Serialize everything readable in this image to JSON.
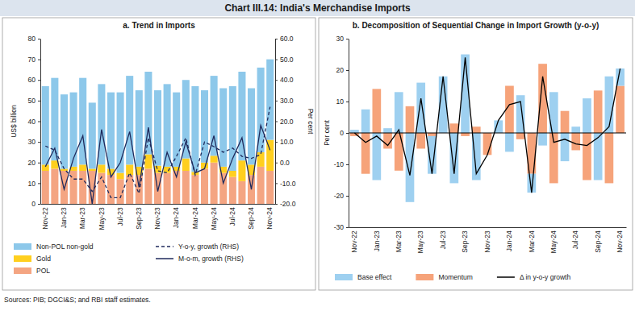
{
  "title": "Chart III.14: India's Merchandise Imports",
  "source": "Sources: PIB; DGCI&S; and RBI staff estimates.",
  "chart_data": [
    {
      "type": "bar",
      "title": "a. Trend in Imports",
      "stacked": true,
      "grid": false,
      "legend": "bottom",
      "ylabel": "US$ billion",
      "y2label": "Per cent",
      "categories": [
        "Nov-22",
        null,
        "Jan-23",
        null,
        "Mar-23",
        null,
        "May-23",
        null,
        "Jul-23",
        null,
        "Sep-23",
        null,
        "Nov-23",
        null,
        "Jan-24",
        null,
        "Mar-24",
        null,
        "May-24",
        null,
        "Jul-24",
        null,
        "Sep-24",
        null,
        "Nov-24"
      ],
      "ylim": [
        0,
        80
      ],
      "yticks": [
        0,
        10,
        20,
        30,
        40,
        50,
        60,
        70,
        80
      ],
      "y2lim": [
        -20,
        60
      ],
      "y2ticks": [
        {
          "value": -20,
          "label": "-20.0"
        },
        {
          "value": -10,
          "label": "-10.0"
        },
        {
          "value": 0,
          "label": "0.0"
        },
        {
          "value": 10,
          "label": "10.0"
        },
        {
          "value": 20,
          "label": "20.0"
        },
        {
          "value": 30,
          "label": "30.0"
        },
        {
          "value": 40,
          "label": "40.0"
        },
        {
          "value": 50,
          "label": "50.0"
        },
        {
          "value": 60,
          "label": "60.0"
        }
      ],
      "series": [
        {
          "name": "Non-POL non-gold",
          "color": "#8DC8EA",
          "values": [
            38,
            40,
            36,
            36,
            42,
            32,
            39,
            37,
            39,
            43,
            37,
            40,
            36.5,
            40,
            36,
            38,
            41.5,
            35,
            38.7,
            38,
            41,
            43,
            37,
            41,
            39
          ]
        },
        {
          "name": "Gold",
          "color": "#FFCF1F",
          "values": [
            3,
            4,
            1,
            2,
            3,
            1,
            4,
            3,
            3,
            5,
            4,
            7,
            3.5,
            3,
            2,
            6,
            1.5,
            3,
            3.3,
            3,
            3,
            10,
            5,
            7,
            15
          ]
        },
        {
          "name": "POL",
          "color": "#F4A582",
          "values": [
            16,
            17,
            16,
            16,
            16,
            16,
            15,
            14,
            12,
            14,
            14,
            17,
            15,
            15,
            16,
            16,
            14,
            17,
            20,
            15,
            13,
            11,
            14,
            18,
            16
          ]
        },
        {
          "name": "Y-o-y, growth (RHS)",
          "type": "line",
          "axis": "y2",
          "line_style": "dashed",
          "color": "#1F2A5C",
          "values": [
            8,
            6,
            -3,
            -8,
            -8,
            -14,
            -7,
            -17,
            -17,
            -5,
            -15,
            12,
            -4,
            -5,
            3,
            12,
            -6,
            10,
            7.7,
            5,
            7,
            3,
            2,
            3.9,
            27
          ]
        },
        {
          "name": "M-o-m, growth (RHS)",
          "type": "line",
          "axis": "y2",
          "line_style": "solid",
          "color": "#1F2A5C",
          "values": [
            -2,
            7,
            -13,
            2,
            13,
            -20,
            16,
            -7,
            0,
            15,
            -12,
            17,
            -14,
            5,
            -7,
            10,
            -5,
            -3,
            13,
            -10,
            2,
            12,
            -13,
            18,
            6
          ]
        }
      ]
    },
    {
      "type": "bar",
      "title": "b. Decomposition of Sequential Change in Import Growth (y-o-y)",
      "stacked": true,
      "grid": false,
      "legend": "bottom",
      "ylabel": "Per cent",
      "categories": [
        "Nov-22",
        null,
        "Jan-23",
        null,
        "Mar-23",
        null,
        "May-23",
        null,
        "Jul-23",
        null,
        "Sep-23",
        null,
        "Nov-23",
        null,
        "Jan-24",
        null,
        "Mar-24",
        null,
        "May-24",
        null,
        "Jul-24",
        null,
        "Sep-24",
        null,
        "Nov-24"
      ],
      "ylim": [
        -30,
        30
      ],
      "yticks": [
        -30,
        -20,
        -10,
        0,
        10,
        20,
        30
      ],
      "series": [
        {
          "name": "Base effect",
          "color": "#9ED0F0",
          "values": [
            1,
            7.5,
            -15,
            1.5,
            13,
            -22,
            16,
            -12,
            18,
            -16,
            25,
            -15,
            0,
            4,
            -6,
            12,
            -6,
            -4,
            13,
            -9,
            2,
            11,
            -15,
            18,
            5.5
          ]
        },
        {
          "name": "Momentum",
          "color": "#F6A37A",
          "values": [
            -1,
            -13,
            14,
            -5,
            -12,
            8.5,
            -5,
            -1,
            0,
            3,
            -1,
            2,
            -7,
            0,
            15,
            -2,
            -13,
            22,
            -16,
            7,
            -5.5,
            -15,
            13.5,
            -16,
            15
          ]
        },
        {
          "name": "Δ in y-o-y growth",
          "type": "line",
          "line_style": "solid",
          "color": "#000000",
          "values": [
            0,
            -3,
            -1,
            -4,
            1,
            -13.5,
            11,
            -13,
            18,
            -13,
            24,
            -13,
            -7,
            4,
            9,
            10,
            -19,
            18,
            -3,
            -2,
            -3.5,
            -4,
            -1.5,
            2,
            20.5
          ]
        }
      ]
    }
  ]
}
